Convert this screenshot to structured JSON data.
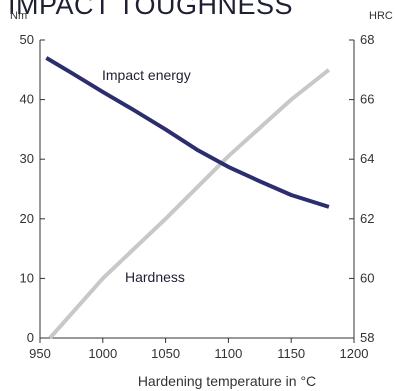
{
  "chart_data": {
    "type": "line",
    "title": "IMPACT TOUGHNESS",
    "xlabel": "Hardening temperature in °C",
    "ylabel_left": "Nm",
    "ylabel_right": "HRC",
    "xlim": [
      950,
      1200
    ],
    "ylim_left": [
      0,
      50
    ],
    "ylim_right": [
      58,
      68
    ],
    "x_ticks": [
      "950",
      "1000",
      "1050",
      "1100",
      "1150",
      "1200"
    ],
    "y_left_ticks": [
      "0",
      "10",
      "20",
      "30",
      "40",
      "50"
    ],
    "y_right_ticks": [
      "58",
      "60",
      "62",
      "64",
      "66",
      "68"
    ],
    "grid": false,
    "series": [
      {
        "name": "Impact energy",
        "axis": "left",
        "color": "#2b2d6e",
        "x": [
          955,
          975,
          1000,
          1025,
          1050,
          1075,
          1100,
          1125,
          1150,
          1180
        ],
        "y": [
          47,
          44.5,
          41.3,
          38.2,
          35,
          31.6,
          28.7,
          26.3,
          24,
          22
        ]
      },
      {
        "name": "Hardness",
        "axis": "right",
        "color": "#c8c8c8",
        "x": [
          958,
          1000,
          1050,
          1100,
          1150,
          1180
        ],
        "y": [
          58,
          60,
          62,
          64.1,
          66,
          67
        ]
      }
    ],
    "annotations": [
      {
        "text": "Impact energy"
      },
      {
        "text": "Hardness"
      }
    ]
  }
}
